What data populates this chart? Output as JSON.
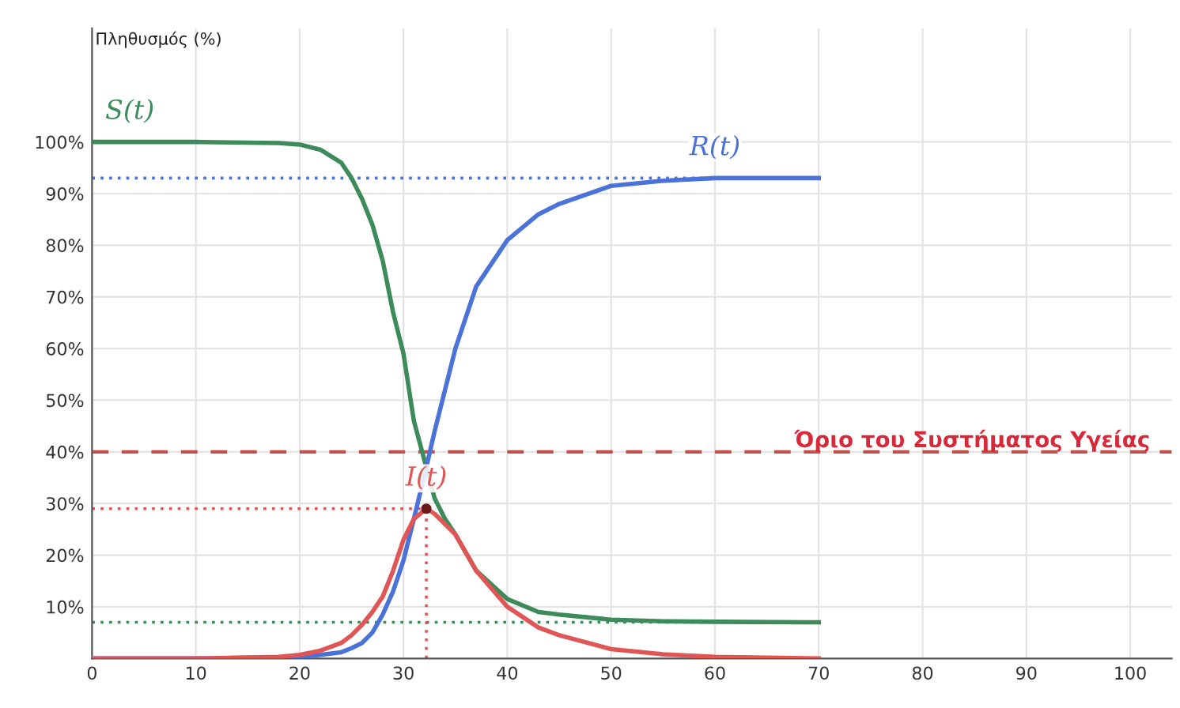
{
  "chart_data": {
    "type": "line",
    "ylabel": "Πληθυσμός (%)",
    "xlim": [
      0,
      104
    ],
    "ylim": [
      0,
      122
    ],
    "xticks": [
      0,
      10,
      20,
      30,
      40,
      50,
      60,
      70,
      80,
      90,
      100
    ],
    "yticks": [
      {
        "value": 10,
        "label": "10%"
      },
      {
        "value": 20,
        "label": "20%"
      },
      {
        "value": 30,
        "label": "30%"
      },
      {
        "value": 40,
        "label": "40%"
      },
      {
        "value": 50,
        "label": "50%"
      },
      {
        "value": 60,
        "label": "60%"
      },
      {
        "value": 70,
        "label": "70%"
      },
      {
        "value": 80,
        "label": "80%"
      },
      {
        "value": 90,
        "label": "90%"
      },
      {
        "value": 100,
        "label": "100%"
      }
    ],
    "grid": true,
    "legend": false,
    "marker": "none",
    "line_style": "solid",
    "series": [
      {
        "name": "S(t)",
        "color": "#3d8b5a",
        "x": [
          0,
          10,
          18,
          20,
          22,
          24,
          25,
          26,
          27,
          28,
          29,
          30,
          31,
          32.2,
          33,
          34,
          35,
          37,
          40,
          43,
          45,
          50,
          55,
          60,
          70
        ],
        "values": [
          100,
          100,
          99.8,
          99.5,
          98.5,
          96,
          93,
          89,
          84,
          77,
          67,
          59,
          46,
          37,
          31,
          27,
          24,
          17,
          11.5,
          9,
          8.5,
          7.5,
          7.2,
          7.1,
          7
        ]
      },
      {
        "name": "R(t)",
        "color": "#4a72d8",
        "x": [
          0,
          10,
          20,
          22,
          24,
          25,
          26,
          27,
          28,
          29,
          30,
          31,
          32.2,
          33,
          34,
          35,
          37,
          40,
          43,
          45,
          50,
          55,
          60,
          70
        ],
        "values": [
          0,
          0,
          0.3,
          0.7,
          1.2,
          2,
          3,
          5,
          8.5,
          13,
          19,
          27,
          37,
          44,
          52,
          60,
          72,
          81,
          86,
          88,
          91.5,
          92.5,
          93,
          93
        ]
      },
      {
        "name": "I(t)",
        "color": "#e05555",
        "x": [
          0,
          10,
          18,
          20,
          22,
          24,
          25,
          26,
          27,
          28,
          29,
          30,
          31,
          32.2,
          33,
          34,
          35,
          37,
          40,
          43,
          45,
          50,
          55,
          60,
          70
        ],
        "values": [
          0,
          0,
          0.3,
          0.7,
          1.5,
          3,
          4.5,
          6.5,
          9,
          12,
          17,
          23,
          27,
          29,
          28,
          26,
          24,
          17,
          10,
          6,
          4.5,
          1.8,
          0.8,
          0.3,
          0
        ]
      },
      {
        "color": "#4a72d8",
        "line_style": "dotted",
        "x": [
          0,
          70
        ],
        "values": [
          93,
          93
        ]
      },
      {
        "color": "#3d8b5a",
        "line_style": "dotted",
        "x": [
          0,
          70
        ],
        "values": [
          7,
          7
        ]
      },
      {
        "color": "#e05555",
        "line_style": "dotted",
        "x": [
          0,
          32.2
        ],
        "values": [
          29,
          29
        ]
      },
      {
        "color": "#e05555",
        "line_style": "dotted",
        "x": [
          32.2,
          32.2
        ],
        "values": [
          0,
          29
        ]
      },
      {
        "type": "scatter",
        "marker": "circle",
        "color": "#6b1a1a",
        "x": [
          32.2
        ],
        "values": [
          29
        ]
      }
    ],
    "ref_lines": [
      {
        "axis": "y",
        "value": 40,
        "label": "Όριο του Συστήματος Υγείας",
        "color": "#c0504d",
        "line_style": "dashed"
      }
    ]
  }
}
